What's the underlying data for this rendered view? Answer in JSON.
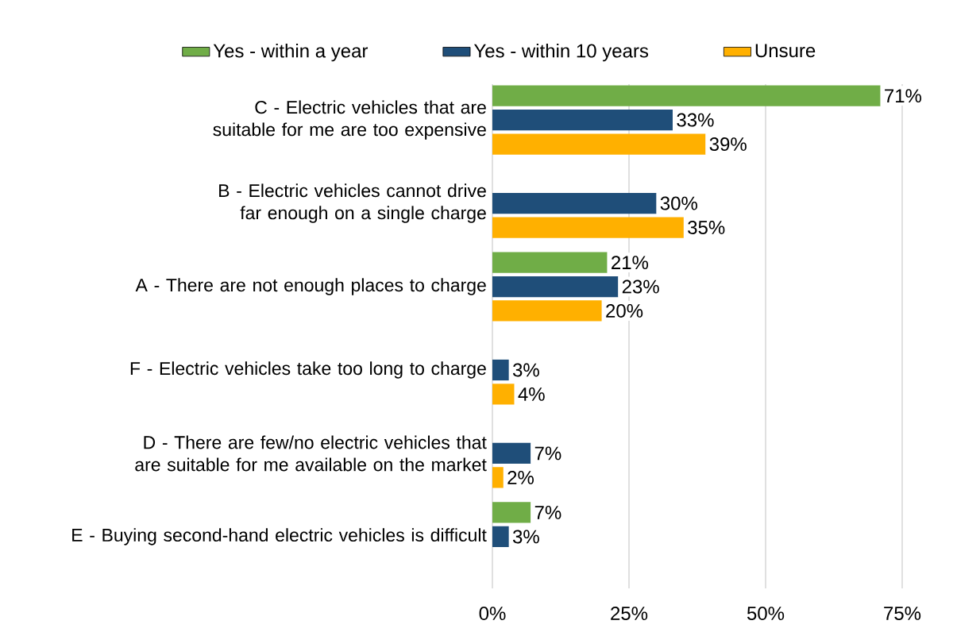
{
  "chart_data": {
    "type": "bar",
    "orientation": "horizontal",
    "categories": [
      "C - Electric vehicles that are suitable for me are too expensive",
      "B - Electric vehicles cannot drive far enough on a single charge",
      "A - There are not enough places to charge",
      "F - Electric vehicles take too long to charge",
      "D - There are few/no electric vehicles that are suitable for me available on the market",
      "E - Buying second-hand electric vehicles is difficult"
    ],
    "series": [
      {
        "name": "Yes - within a year",
        "color": "#70ad47",
        "values": [
          71,
          null,
          21,
          null,
          null,
          7
        ],
        "value_labels": [
          "71%",
          null,
          "21%",
          null,
          null,
          "7%"
        ]
      },
      {
        "name": "Yes - within 10 years",
        "color": "#1f4e79",
        "values": [
          33,
          30,
          23,
          3,
          7,
          3
        ],
        "value_labels": [
          "33%",
          "30%",
          "23%",
          "3%",
          "7%",
          "3%"
        ]
      },
      {
        "name": "Unsure",
        "color": "#ffb000",
        "values": [
          39,
          35,
          20,
          4,
          2,
          null
        ],
        "value_labels": [
          "39%",
          "35%",
          "20%",
          "4%",
          "2%",
          null
        ]
      }
    ],
    "xlim": [
      0,
      75
    ],
    "xticks": [
      {
        "value": 0,
        "label": "0%"
      },
      {
        "value": 25,
        "label": "25%"
      },
      {
        "value": 50,
        "label": "50%"
      },
      {
        "value": 75,
        "label": "75%"
      }
    ],
    "grid": "x",
    "legend": "top"
  }
}
